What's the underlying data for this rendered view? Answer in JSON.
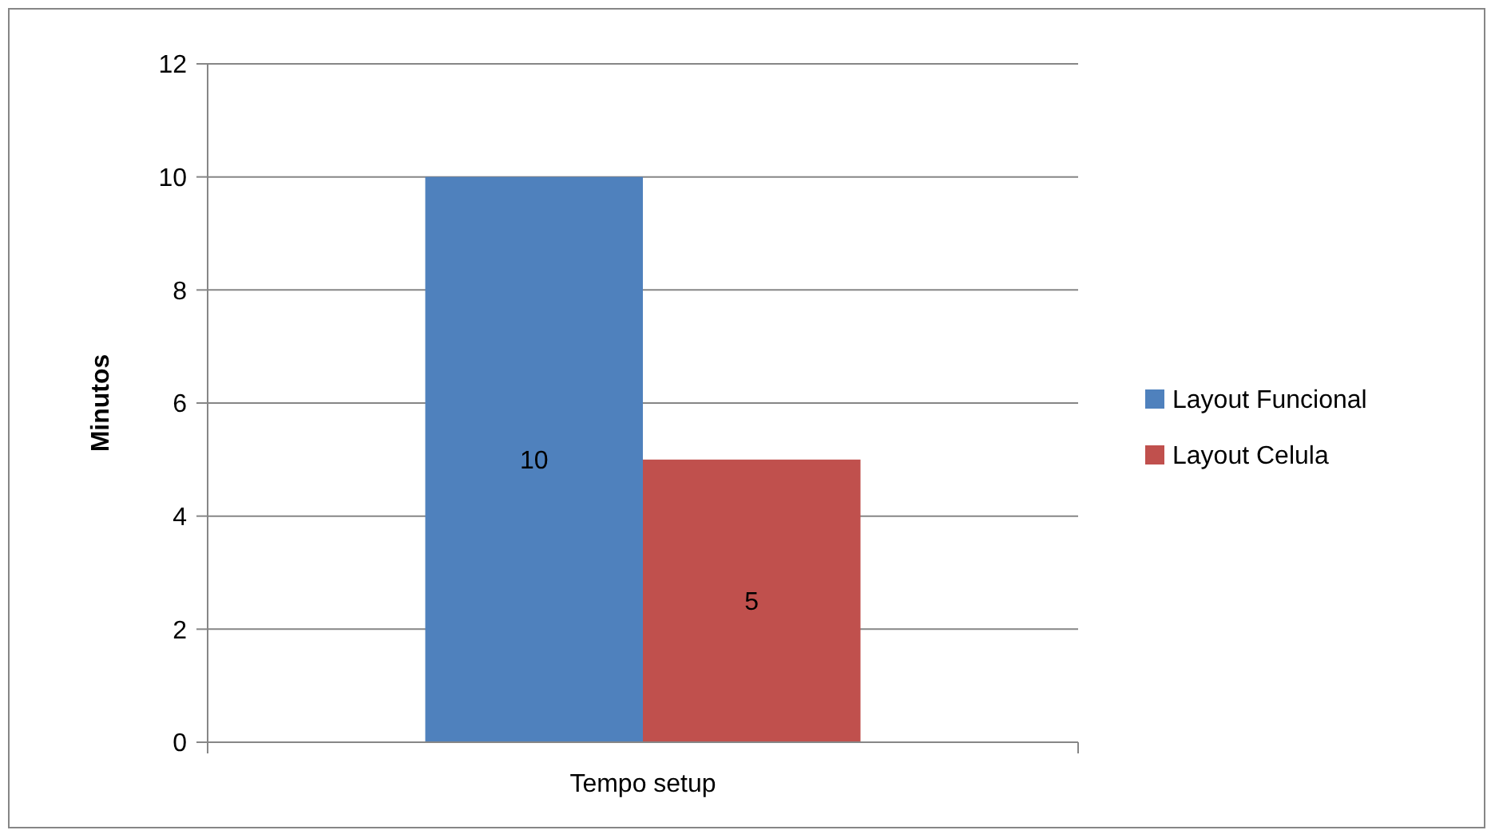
{
  "chart_data": {
    "type": "bar",
    "ylabel": "Minutos",
    "categories": [
      "Tempo setup"
    ],
    "series": [
      {
        "name": "Layout Funcional",
        "color": "#4f81bd",
        "values": [
          10
        ]
      },
      {
        "name": "Layout Celula",
        "color": "#c0504d",
        "values": [
          5
        ]
      }
    ],
    "ylim": [
      0,
      12
    ],
    "yticks": [
      0,
      2,
      4,
      6,
      8,
      10,
      12
    ],
    "grid": "y",
    "legend": "right",
    "data_labels": true
  }
}
